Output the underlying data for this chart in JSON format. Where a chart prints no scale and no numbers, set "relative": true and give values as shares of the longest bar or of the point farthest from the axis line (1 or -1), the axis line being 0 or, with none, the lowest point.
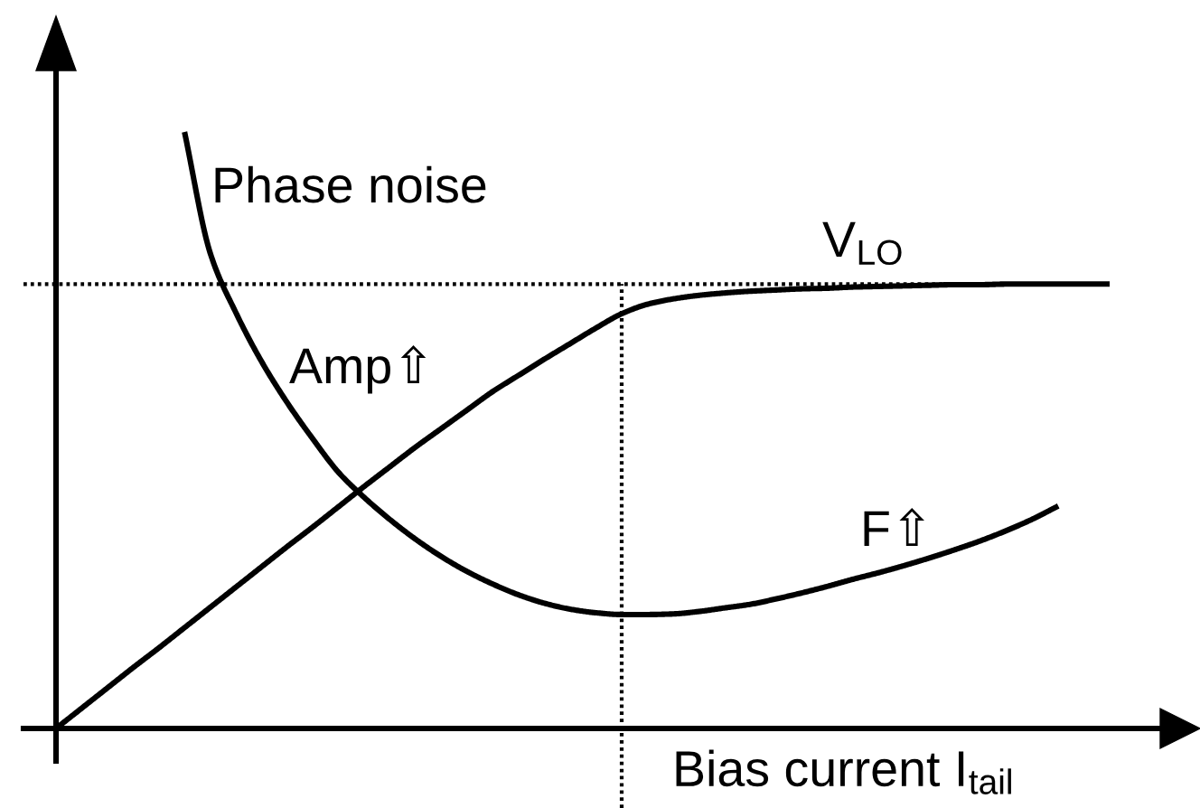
{
  "chart_data": {
    "type": "line",
    "relative": true,
    "xlabel": "Bias current I$_{tail}$",
    "categories": [
      null,
      null,
      null,
      null,
      null,
      null,
      null,
      null,
      null,
      null,
      null,
      null,
      null,
      null,
      null,
      null,
      null,
      null,
      null,
      null,
      null,
      null,
      null,
      null,
      null,
      null,
      null,
      null,
      null,
      null,
      null,
      null,
      null,
      null,
      null,
      null,
      null,
      null,
      null,
      null,
      null,
      null
    ],
    "series": [
      {
        "name": "Phase noise",
        "color": "#000000",
        "values": [
          null,
          null,
          null,
          null,
          null,
          1.0,
          0.797,
          0.697,
          0.615,
          0.546,
          0.485,
          0.429,
          0.387,
          0.35,
          0.317,
          0.288,
          0.263,
          0.242,
          0.224,
          0.21,
          0.2,
          0.194,
          0.191,
          0.191,
          0.192,
          0.196,
          0.202,
          0.208,
          0.217,
          0.227,
          0.238,
          0.25,
          0.261,
          0.273,
          0.286,
          0.3,
          0.315,
          0.332,
          0.351,
          0.373,
          null,
          null
        ]
      },
      {
        "name": "V$_{LO}$",
        "color": "#000000",
        "values": [
          0,
          0.034,
          0.068,
          0.102,
          0.135,
          0.169,
          0.203,
          0.237,
          0.271,
          0.305,
          0.338,
          0.372,
          0.406,
          0.439,
          0.472,
          0.503,
          0.534,
          0.565,
          0.592,
          0.619,
          0.645,
          0.671,
          0.695,
          0.711,
          0.72,
          0.726,
          0.73,
          0.733,
          0.735,
          0.737,
          0.738,
          0.74,
          0.741,
          0.742,
          0.743,
          0.744,
          0.744,
          0.745,
          0.745,
          0.745,
          0.745,
          0.745
        ]
      }
    ],
    "ref_lines": [
      {
        "axis": "y",
        "value": 0.745,
        "color": "#000000",
        "line_style": "dotted"
      }
    ],
    "annotations": [
      "Amp⇧",
      "F⇧"
    ]
  }
}
